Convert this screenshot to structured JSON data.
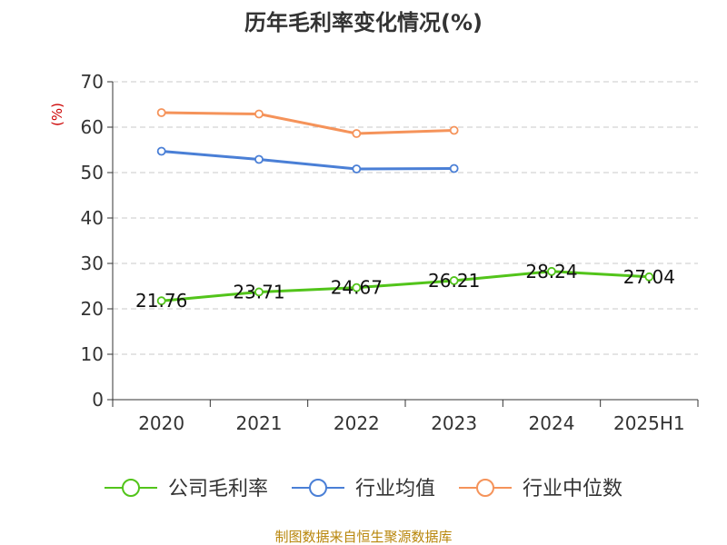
{
  "chart_data": {
    "type": "line",
    "title": "历年毛利率变化情况(%)",
    "ylabel": "(%)",
    "xlabel": "",
    "categories": [
      "2020",
      "2021",
      "2022",
      "2023",
      "2024",
      "2025H1"
    ],
    "ylim": [
      0,
      70
    ],
    "yticks": [
      0,
      10,
      20,
      30,
      40,
      50,
      60,
      70
    ],
    "grid": true,
    "legend_position": "bottom",
    "series": [
      {
        "name": "公司毛利率",
        "color": "#52c41a",
        "values": [
          21.76,
          23.71,
          24.67,
          26.21,
          28.24,
          27.04
        ],
        "labels": [
          "21.76",
          "23.71",
          "24.67",
          "26.21",
          "28.24",
          "27.04"
        ]
      },
      {
        "name": "行业均值",
        "color": "#4a7fd6",
        "values": [
          54.7,
          52.9,
          50.8,
          50.9,
          null,
          null
        ]
      },
      {
        "name": "行业中位数",
        "color": "#f5935a",
        "values": [
          63.2,
          62.9,
          58.6,
          59.3,
          null,
          null
        ]
      }
    ]
  },
  "source": "制图数据来自恒生聚源数据库"
}
